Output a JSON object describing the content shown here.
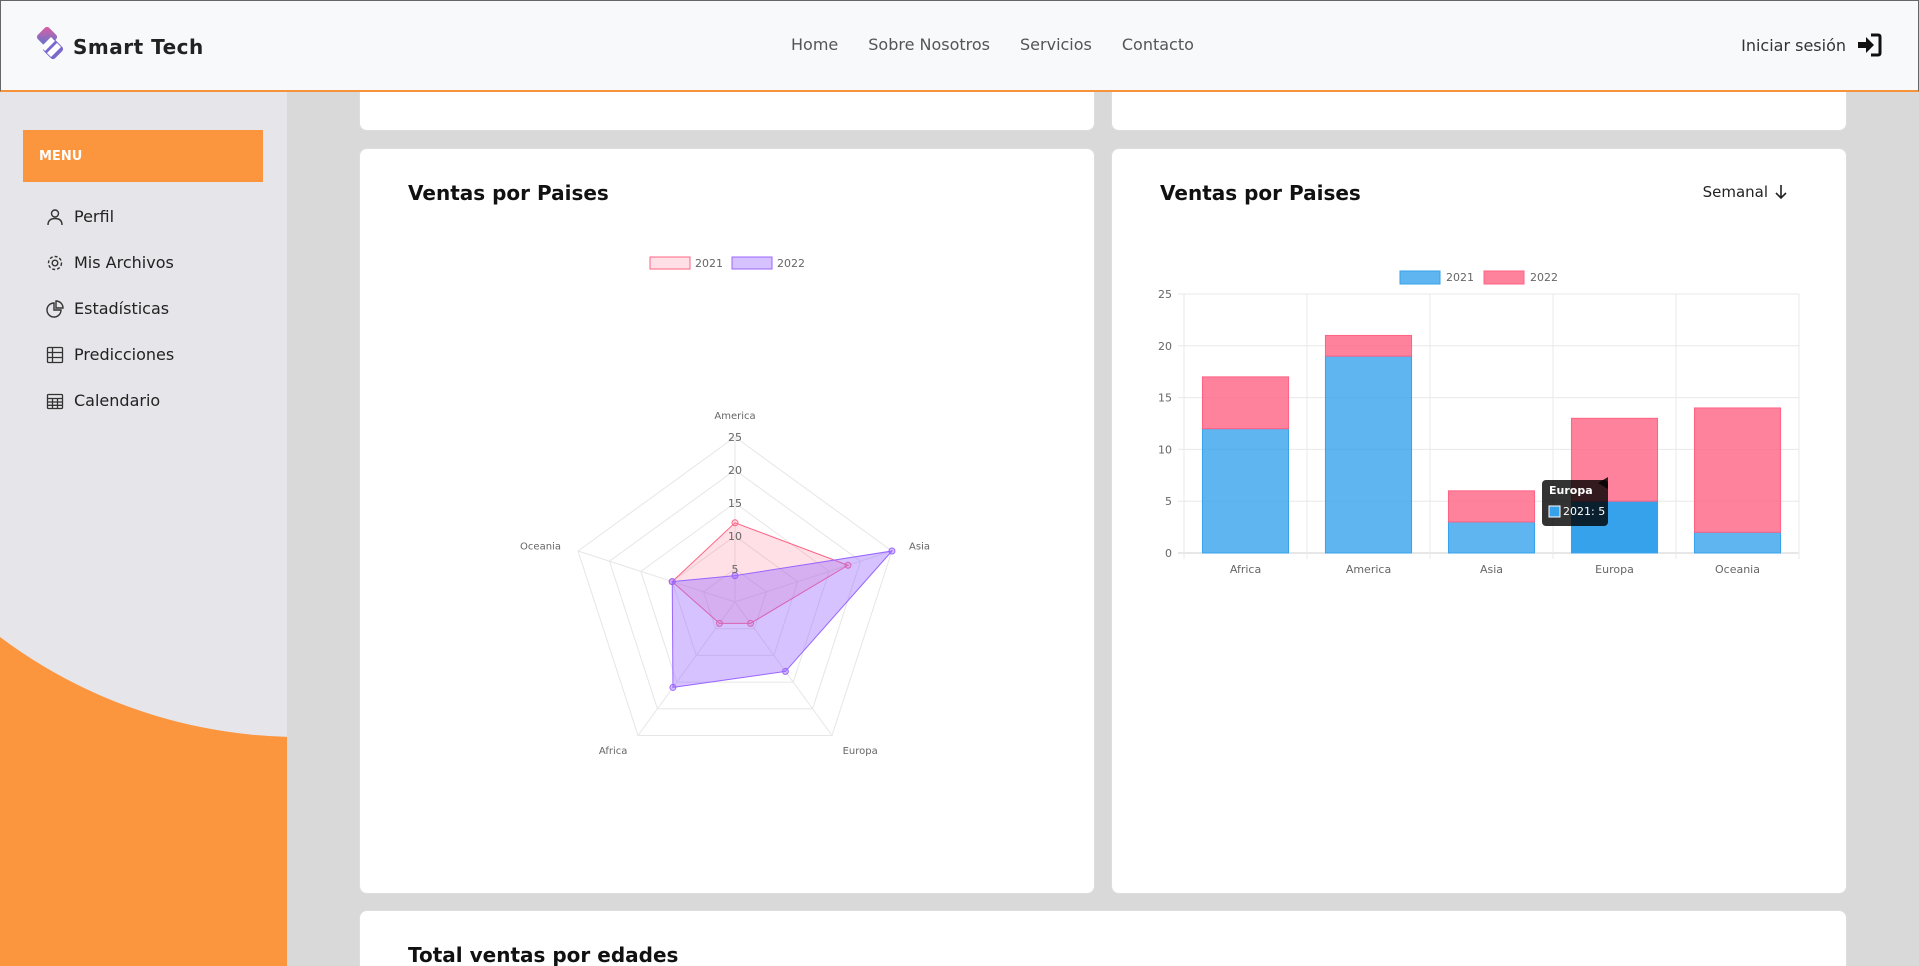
{
  "header": {
    "brand": "Smart Tech",
    "nav": [
      "Home",
      "Sobre Nosotros",
      "Servicios",
      "Contacto"
    ],
    "login_label": "Iniciar sesión"
  },
  "sidebar": {
    "menu_label": "MENU",
    "items": [
      {
        "label": "Perfil",
        "icon": "user-icon"
      },
      {
        "label": "Mis Archivos",
        "icon": "gear-icon"
      },
      {
        "label": "Estadísticas",
        "icon": "pie-chart-icon"
      },
      {
        "label": "Predicciones",
        "icon": "table-icon"
      },
      {
        "label": "Calendario",
        "icon": "calendar-icon"
      }
    ]
  },
  "cards": {
    "radar_title": "Ventas por Paises",
    "bar_title": "Ventas por Paises",
    "bar_period": "Semanal",
    "bottom_title": "Total ventas por edades"
  },
  "colors": {
    "accent": "#fb953e",
    "series_2021_radar": "#ff6384",
    "series_2022_radar": "#9966ff",
    "series_2021_bar": "#36a2eb",
    "series_2022_bar": "#ff6384"
  },
  "chart_data": [
    {
      "type": "radar",
      "title": "",
      "categories": [
        "America",
        "Asia",
        "Europa",
        "Africa",
        "Oceania"
      ],
      "rlim": [
        0,
        25
      ],
      "ticks": [
        "5",
        "10",
        "15",
        "20",
        "25"
      ],
      "legend": "top",
      "series": [
        {
          "name": "2021",
          "values": [
            12,
            18,
            4,
            4,
            10
          ]
        },
        {
          "name": "2022",
          "values": [
            4,
            25,
            13,
            16,
            10
          ]
        }
      ]
    },
    {
      "type": "bar",
      "stacked": true,
      "title": "",
      "categories": [
        "Africa",
        "America",
        "Asia",
        "Europa",
        "Oceania"
      ],
      "ylim": [
        0,
        25
      ],
      "yticks": [
        "0",
        "5",
        "10",
        "15",
        "20",
        "25"
      ],
      "legend": "top",
      "series": [
        {
          "name": "2021",
          "values": [
            12,
            19,
            3,
            5,
            2
          ]
        },
        {
          "name": "2022",
          "values": [
            5,
            2,
            3,
            8,
            12
          ]
        }
      ],
      "tooltip": {
        "title": "Europa",
        "text": "2021: 5"
      }
    }
  ]
}
